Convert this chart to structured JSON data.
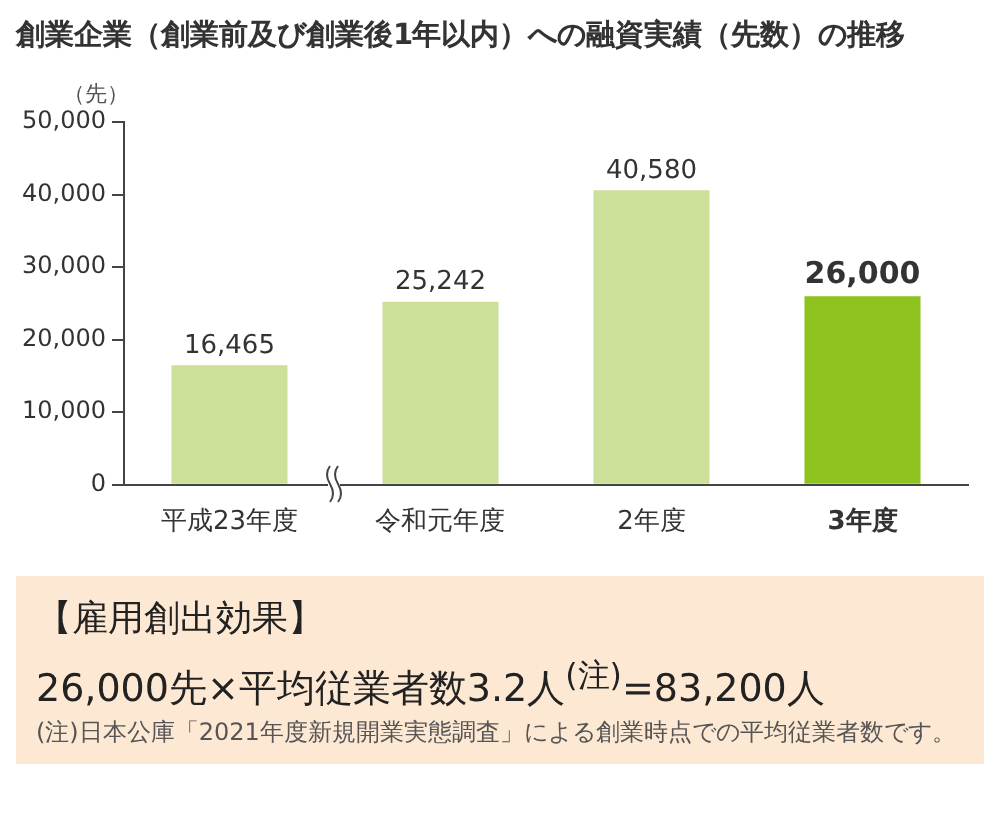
{
  "chart_data": {
    "type": "bar",
    "title": "創業企業（創業前及び創業後1年以内）への融資実績（先数）の推移",
    "ylabel": "（先）",
    "categories": [
      "平成23年度",
      "令和元年度",
      "2年度",
      "3年度"
    ],
    "values": [
      16465,
      25242,
      40580,
      26000
    ],
    "colors": [
      "#cde09a",
      "#cde09a",
      "#cde09a",
      "#8dc21f"
    ],
    "value_labels": [
      "16,465",
      "25,242",
      "40,580",
      "26,000"
    ],
    "ylim": [
      0,
      50000
    ],
    "yticks": [
      0,
      {
        "value": 10000,
        "label": "10,000"
      },
      {
        "value": 20000,
        "label": "20,000"
      },
      {
        "value": 30000,
        "label": "30,000"
      },
      {
        "value": 40000,
        "label": "40,000"
      },
      {
        "value": 50000,
        "label": "50,000"
      }
    ],
    "grid": false,
    "legend": false,
    "annotations": [
      "【雇用創出効果】",
      "26,000先×平均従業者数3.2人$^{(注)}$=83,200人",
      "(注)日本公庫「2021年度新規開業実態調査」による創業時点での平均従業者数です。"
    ]
  }
}
